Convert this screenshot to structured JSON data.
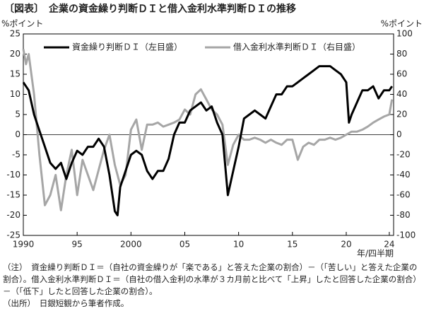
{
  "chart_data": {
    "type": "line",
    "title": "〔図表〕　企業の資金繰り判断ＤＩと借入金利水準判断ＤＩの推移",
    "y_label": "%ポイント",
    "y2_label": "%ポイント",
    "x_label": "年/四半期",
    "xlim": [
      1990,
      2024.4
    ],
    "xticks": [
      {
        "value": 1990,
        "label": "1990"
      },
      {
        "value": 1995,
        "label": "95"
      },
      {
        "value": 2000,
        "label": "2000"
      },
      {
        "value": 2005,
        "label": "05"
      },
      {
        "value": 2010,
        "label": "10"
      },
      {
        "value": 2015,
        "label": "15"
      },
      {
        "value": 2020,
        "label": "20"
      },
      {
        "value": 2024,
        "label": "24"
      }
    ],
    "ylim": [
      -25,
      25
    ],
    "yticks": [
      -25,
      -20,
      -15,
      -10,
      -5,
      0,
      5,
      10,
      15,
      20,
      25
    ],
    "y2lim": [
      -100,
      100
    ],
    "y2ticks": [
      -100,
      -80,
      -60,
      -40,
      -20,
      0,
      20,
      40,
      60,
      80,
      100
    ],
    "grid": false,
    "legend": "top",
    "series": [
      {
        "name": "資金繰り判断ＤＩ（左目盛）",
        "color": "#000000",
        "x": [
          1990,
          1990.5,
          1991,
          1991.5,
          1992,
          1992.5,
          1993,
          1993.5,
          1994,
          1994.5,
          1995,
          1995.5,
          1996,
          1996.5,
          1997,
          1997.5,
          1998,
          1998.5,
          1998.75,
          1999,
          1999.5,
          2000,
          2000.5,
          2001,
          2001.5,
          2002,
          2002.5,
          2003,
          2003.5,
          2004,
          2004.5,
          2005,
          2005.5,
          2006,
          2006.5,
          2007,
          2007.5,
          2008,
          2008.5,
          2009,
          2009.5,
          2010,
          2010.5,
          2011,
          2011.5,
          2012,
          2012.5,
          2013,
          2013.5,
          2014,
          2014.5,
          2015,
          2015.5,
          2016,
          2016.5,
          2017,
          2017.5,
          2018,
          2018.5,
          2019,
          2019.5,
          2020,
          2020.25,
          2020.5,
          2021,
          2021.5,
          2022,
          2022.5,
          2023,
          2023.5,
          2024,
          2024.25
        ],
        "values": [
          13,
          11,
          5,
          1,
          -3,
          -7,
          -8.5,
          -7,
          -11,
          -7,
          -4,
          -5,
          -3,
          -3,
          -1,
          -3,
          -10,
          -19,
          -20,
          -13,
          -9,
          -5,
          -4,
          -5,
          -9,
          -11,
          -9,
          -9,
          -6,
          0,
          3,
          3,
          6,
          7,
          8,
          6,
          7,
          3,
          0,
          -15,
          -9,
          -3,
          4,
          5,
          6,
          5,
          4,
          7,
          10,
          10,
          12,
          12,
          13,
          14,
          15,
          16,
          17,
          17,
          17,
          16,
          15,
          13,
          3,
          5,
          8,
          11,
          11,
          12,
          9,
          11,
          11,
          12
        ]
      },
      {
        "name": "借入金利水準判断ＤＩ（右目盛）",
        "color": "#a6a6a6",
        "axis": "y2",
        "x": [
          1990,
          1990.25,
          1990.5,
          1991,
          1991.5,
          1992,
          1992.5,
          1993,
          1993.5,
          1994,
          1994.5,
          1995,
          1995.5,
          1996,
          1996.5,
          1997,
          1997.5,
          1998,
          1998.5,
          1999,
          1999.5,
          2000,
          2000.5,
          2001,
          2001.5,
          2002,
          2002.5,
          2003,
          2003.5,
          2004,
          2004.5,
          2005,
          2005.5,
          2006,
          2006.5,
          2007,
          2007.5,
          2008,
          2008.5,
          2009,
          2009.5,
          2010,
          2010.5,
          2011,
          2011.5,
          2012,
          2012.5,
          2013,
          2013.5,
          2014,
          2014.5,
          2015,
          2015.5,
          2016,
          2016.5,
          2017,
          2017.5,
          2018,
          2018.5,
          2019,
          2019.5,
          2020,
          2020.5,
          2021,
          2021.5,
          2022,
          2022.5,
          2023,
          2023.5,
          2024,
          2024.25
        ],
        "values": [
          85,
          70,
          80,
          40,
          -20,
          -70,
          -60,
          -40,
          -75,
          -40,
          -15,
          -60,
          -25,
          -40,
          -55,
          -35,
          -15,
          0,
          -30,
          -50,
          -40,
          5,
          15,
          -15,
          10,
          10,
          12,
          8,
          10,
          12,
          15,
          25,
          20,
          40,
          45,
          35,
          25,
          20,
          10,
          -30,
          -10,
          0,
          -5,
          -5,
          -3,
          -5,
          -8,
          -5,
          -8,
          -10,
          -5,
          -5,
          -25,
          -12,
          -8,
          -10,
          -5,
          -5,
          -3,
          -5,
          -3,
          0,
          3,
          3,
          5,
          8,
          12,
          15,
          18,
          20,
          35
        ]
      }
    ],
    "notes": [
      "（注）　資金繰り判断ＤＩ＝（自社の資金繰りが「楽である」と答えた企業の割合）－（「苦しい」と答えた企業の割合）。借入金利水準判断ＤＩ＝（自社の借入金利の水準が３カ月前と比べて「上昇」したと回答した企業の割合）－（「低下」したと回答した企業の割合）。",
      "（出所）　日銀短観から筆者作成。"
    ]
  }
}
